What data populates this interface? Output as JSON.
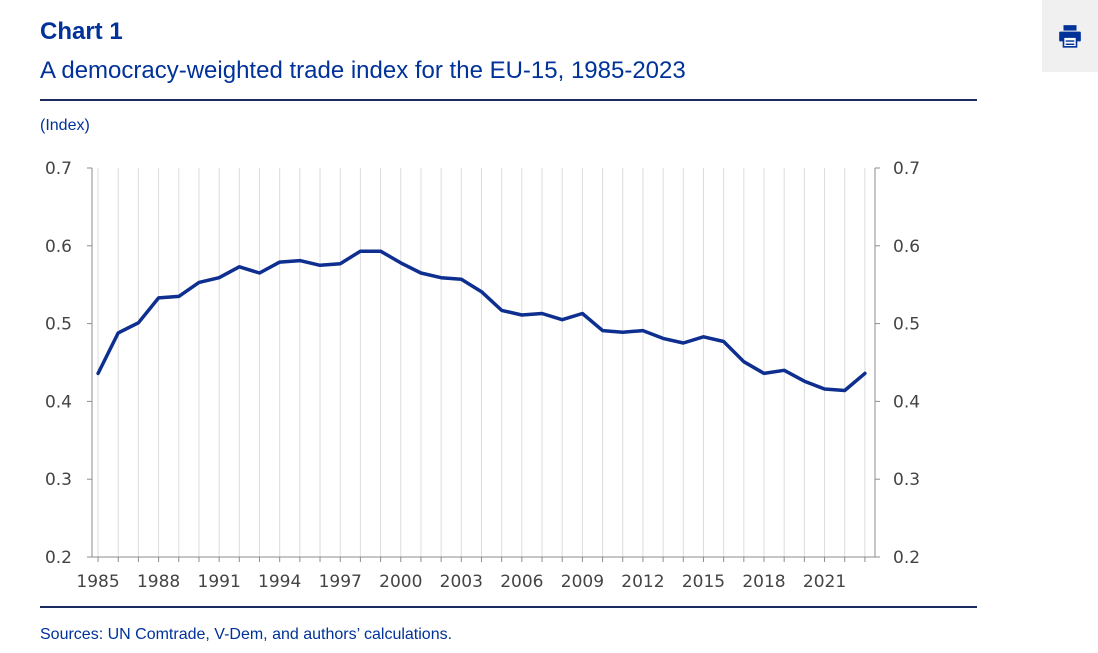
{
  "header": {
    "chart_label": "Chart 1",
    "title": "A democracy-weighted trade index for the EU-15, 1985-2023"
  },
  "unit_label": "(Index)",
  "sources": "Sources: UN Comtrade, V-Dem, and authors’ calculations.",
  "toolbar": {
    "print_icon": "print-icon",
    "accent": "#003299"
  },
  "chart_data": {
    "type": "line",
    "title": "A democracy-weighted trade index for the EU-15, 1985-2023",
    "ylabel": "(Index)",
    "xlabel": "",
    "ylim": [
      0.2,
      0.7
    ],
    "yticks": [
      "0.2",
      "0.3",
      "0.4",
      "0.5",
      "0.6",
      "0.7"
    ],
    "xticks": [
      "1985",
      "1988",
      "1991",
      "1994",
      "1997",
      "2000",
      "2003",
      "2006",
      "2009",
      "2012",
      "2015",
      "2018",
      "2021"
    ],
    "grid": "vertical",
    "line_color": "#0e2f8f",
    "x": [
      1985,
      1986,
      1987,
      1988,
      1989,
      1990,
      1991,
      1992,
      1993,
      1994,
      1995,
      1996,
      1997,
      1998,
      1999,
      2000,
      2001,
      2002,
      2003,
      2004,
      2005,
      2006,
      2007,
      2008,
      2009,
      2010,
      2011,
      2012,
      2013,
      2014,
      2015,
      2016,
      2017,
      2018,
      2019,
      2020,
      2021,
      2022,
      2023
    ],
    "series": [
      {
        "values": [
          0.436,
          0.488,
          0.501,
          0.533,
          0.535,
          0.553,
          0.559,
          0.573,
          0.565,
          0.579,
          0.581,
          0.575,
          0.577,
          0.593,
          0.593,
          0.578,
          0.565,
          0.559,
          0.557,
          0.541,
          0.517,
          0.511,
          0.513,
          0.505,
          0.513,
          0.491,
          0.489,
          0.491,
          0.481,
          0.475,
          0.483,
          0.477,
          0.451,
          0.436,
          0.44,
          0.426,
          0.416,
          0.414,
          0.436
        ]
      }
    ]
  }
}
